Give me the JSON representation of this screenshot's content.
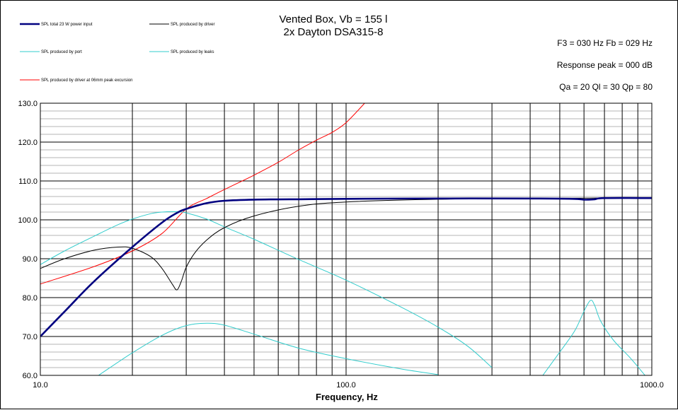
{
  "chart_data": {
    "type": "line",
    "title": "Vented Box, Vb = 155 l",
    "subtitle": "2x Dayton DSA315-8",
    "xlabel": "Frequency, Hz",
    "ylabel": "",
    "x_scale": "log",
    "xlim": [
      10,
      1000
    ],
    "ylim": [
      60,
      130
    ],
    "x_tick_labels": [
      "10.0",
      "100.0",
      "1000.0"
    ],
    "x_tick_values": [
      10,
      100,
      1000
    ],
    "y_tick_labels": [
      "60.0",
      "70.0",
      "80.0",
      "90.0",
      "100.0",
      "110.0",
      "120.0",
      "130.0"
    ],
    "y_tick_values": [
      60,
      70,
      80,
      90,
      100,
      110,
      120,
      130
    ],
    "grid": true,
    "legend_placement": "top-left",
    "annotations": {
      "f3_line": "F3 = 030  Hz  Fb = 029  Hz",
      "peak_line": "Response peak = 000  dB",
      "q_line": "Qa = 20  Ql = 30  Qp = 80"
    },
    "series": [
      {
        "name": "SPL total 23 W power input",
        "color": "#000080",
        "width": 2.6,
        "x": [
          10,
          12,
          15,
          20,
          25,
          28,
          30,
          35,
          40,
          50,
          70,
          100,
          200,
          400,
          550,
          600,
          620,
          650,
          700,
          1000
        ],
        "y": [
          70.0,
          76.4,
          84.2,
          93.0,
          99.3,
          101.8,
          102.8,
          104.3,
          104.9,
          105.2,
          105.3,
          105.4,
          105.5,
          105.5,
          105.4,
          105.2,
          105.2,
          105.3,
          105.6,
          105.6
        ]
      },
      {
        "name": "SPL produced by driver",
        "color": "#000000",
        "width": 1,
        "x": [
          10,
          12,
          15,
          18,
          20,
          23,
          25,
          27,
          28,
          29,
          30,
          32,
          35,
          40,
          50,
          70,
          100,
          200,
          400,
          600,
          1000
        ],
        "y": [
          87.5,
          90.0,
          92.2,
          93.0,
          92.7,
          90.5,
          87.5,
          83.5,
          82.0,
          84.5,
          87.8,
          91.5,
          94.8,
          98.0,
          101.0,
          103.5,
          104.6,
          105.3,
          105.5,
          105.6,
          105.7
        ]
      },
      {
        "name": "SPL produced by port",
        "color": "#33CCCC",
        "width": 1,
        "x": [
          10,
          12,
          15,
          18,
          20,
          23,
          25,
          28,
          30,
          35,
          40,
          50,
          70,
          100,
          150,
          200,
          250,
          300
        ],
        "y": [
          88.5,
          92.0,
          95.8,
          98.8,
          100.2,
          101.6,
          102.0,
          102.1,
          101.8,
          100.2,
          98.2,
          95.0,
          89.8,
          84.5,
          77.7,
          72.4,
          67.5,
          62.0
        ]
      },
      {
        "name": "SPL produced by leaks",
        "color": "#33CCCC",
        "width": 1,
        "x": [
          15.5,
          20,
          25,
          30,
          35,
          40,
          50,
          70,
          100,
          150,
          200
        ],
        "y": [
          60.0,
          65.8,
          70.3,
          72.8,
          73.4,
          72.9,
          70.6,
          67.0,
          64.3,
          61.7,
          60.2
        ]
      },
      {
        "name": "SPL produced by leaks",
        "color": "#33CCCC",
        "width": 1,
        "x": [
          440,
          500,
          560,
          600,
          630,
          650,
          680,
          750,
          850,
          950
        ],
        "y": [
          60.0,
          66.0,
          71.5,
          76.5,
          79.3,
          78.0,
          74.0,
          69.0,
          64.5,
          60.0
        ]
      },
      {
        "name": "SPL produced by driver at 06mm peak excursion",
        "color": "#FF0000",
        "width": 1,
        "x": [
          10,
          15,
          20,
          25,
          30,
          35,
          40,
          50,
          60,
          70,
          80,
          90,
          100,
          115
        ],
        "y": [
          83.5,
          88.0,
          92.0,
          96.5,
          102.8,
          105.5,
          107.8,
          111.5,
          114.8,
          118.0,
          120.5,
          122.5,
          125.0,
          130.0
        ]
      }
    ],
    "legend": [
      {
        "label": "SPL total 23 W power input",
        "color": "#000080",
        "width": 2.4
      },
      {
        "label": "SPL produced by driver",
        "color": "#000000",
        "width": 1
      },
      {
        "label": "SPL produced by port",
        "color": "#33CCCC",
        "width": 1
      },
      {
        "label": "SPL produced by leaks",
        "color": "#33CCCC",
        "width": 1
      },
      {
        "label": "SPL produced by driver at 06mm peak excursion",
        "color": "#FF0000",
        "width": 1
      }
    ]
  }
}
